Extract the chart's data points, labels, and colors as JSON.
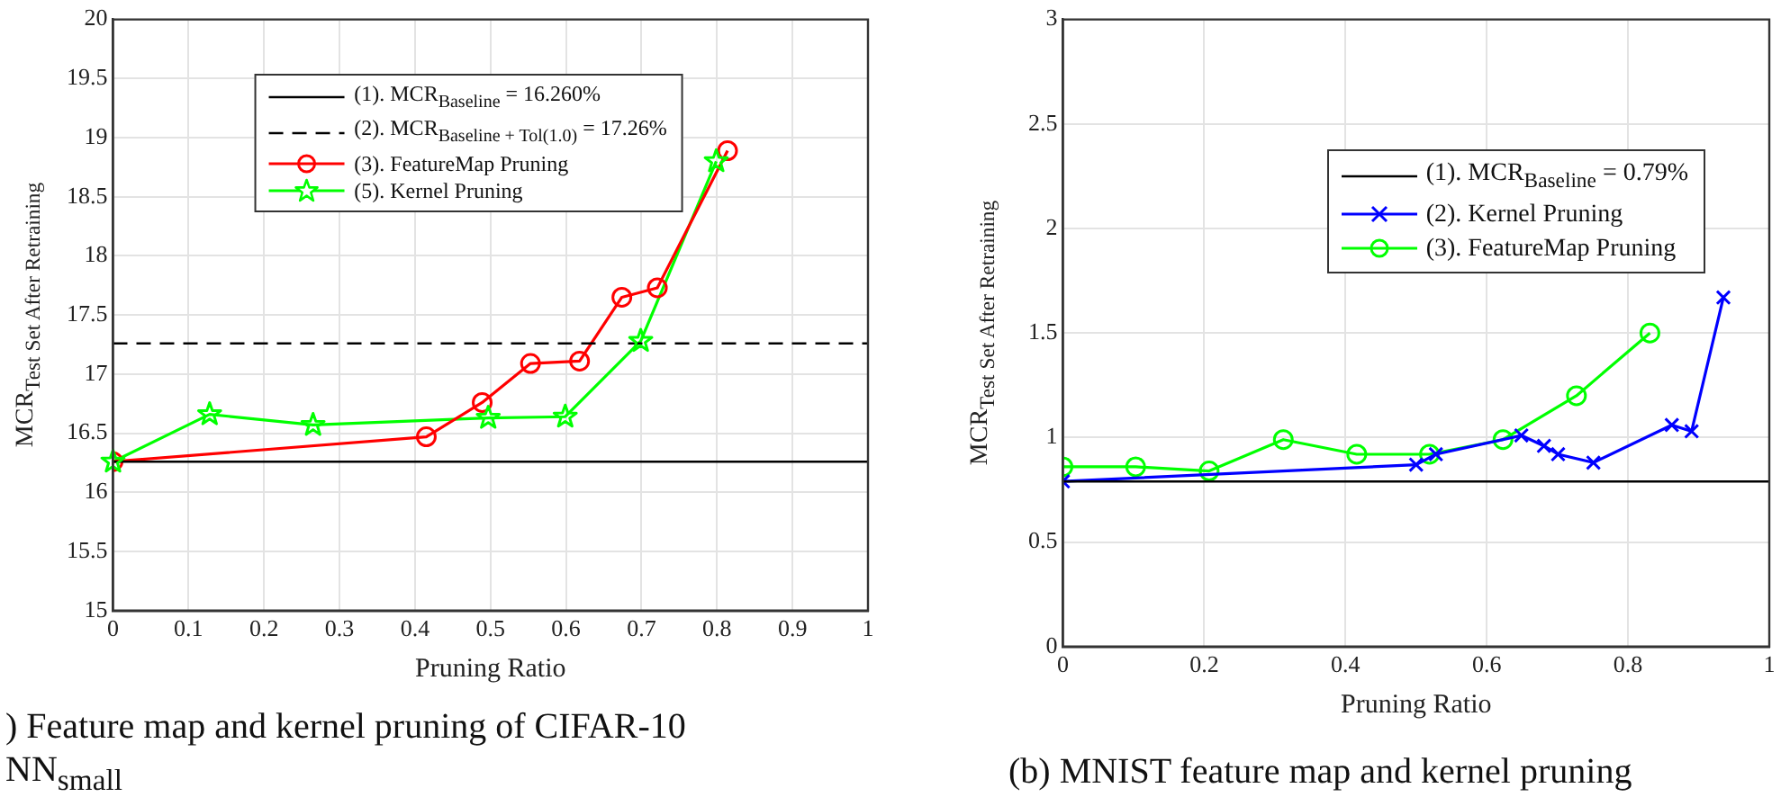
{
  "chart_data": [
    {
      "type": "line",
      "xlabel": "Pruning Ratio",
      "ylabel": "MCR$_{Test Set After Retraining}$",
      "xlim": [
        0,
        1
      ],
      "ylim": [
        15,
        20
      ],
      "xticks": [
        0,
        0.1,
        0.2,
        0.3,
        0.4,
        0.5,
        0.6,
        0.7,
        0.8,
        0.9,
        1
      ],
      "yticks": [
        15,
        15.5,
        16,
        16.5,
        17,
        17.5,
        18,
        18.5,
        19,
        19.5,
        20
      ],
      "grid": true,
      "legend": "top",
      "line_style": "solid",
      "ref_lines": [
        {
          "axis": "y",
          "value": 16.26,
          "label": "(1). MCR$_{Baseline}$ = 16.260%",
          "color": "#000000",
          "line_style": "solid"
        },
        {
          "axis": "y",
          "value": 17.26,
          "label": "(2). MCR$_{Baseline + Tol(1.0)}$ = 17.26%",
          "color": "#000000",
          "line_style": "dashed"
        }
      ],
      "series": [
        {
          "name": "(3). FeatureMap Pruning",
          "color": "#ff0000",
          "marker": "circle",
          "x": [
            0,
            0.415,
            0.489,
            0.553,
            0.618,
            0.674,
            0.721,
            0.814
          ],
          "values": [
            16.26,
            16.47,
            16.76,
            17.09,
            17.11,
            17.65,
            17.73,
            18.89
          ]
        },
        {
          "name": "(5). Kernel Pruning",
          "color": "#00ff00",
          "marker": "star",
          "x": [
            0,
            0.128,
            0.265,
            0.497,
            0.599,
            0.699,
            0.799
          ],
          "values": [
            16.26,
            16.66,
            16.57,
            16.63,
            16.64,
            17.28,
            18.8
          ]
        }
      ],
      "annotations": [
        ") Feature map and kernel pruning of CIFAR-10 NN$_{small}$"
      ]
    },
    {
      "type": "line",
      "xlabel": "Pruning Ratio",
      "ylabel": "MCR$_{Test Set After Retraining}$",
      "xlim": [
        0,
        1
      ],
      "ylim": [
        0,
        3
      ],
      "xticks": [
        0,
        0.2,
        0.4,
        0.6,
        0.8,
        1
      ],
      "yticks": [
        0,
        0.5,
        1,
        1.5,
        2,
        2.5,
        3
      ],
      "grid": true,
      "legend": "top right",
      "line_style": "solid",
      "ref_lines": [
        {
          "axis": "y",
          "value": 0.79,
          "label": "(1). MCR$_{Baseline}$ = 0.79%",
          "color": "#000000",
          "line_style": "solid"
        }
      ],
      "series": [
        {
          "name": "(2). Kernel Pruning",
          "color": "#0000ff",
          "marker": "cross",
          "x": [
            0,
            0.5,
            0.528,
            0.649,
            0.681,
            0.701,
            0.751,
            0.862,
            0.89,
            0.935
          ],
          "values": [
            0.79,
            0.87,
            0.92,
            1.01,
            0.96,
            0.92,
            0.88,
            1.06,
            1.03,
            1.67
          ]
        },
        {
          "name": "(3). FeatureMap Pruning",
          "color": "#00ff00",
          "marker": "circle",
          "x": [
            0,
            0.103,
            0.207,
            0.312,
            0.416,
            0.519,
            0.623,
            0.727,
            0.831
          ],
          "values": [
            0.86,
            0.86,
            0.84,
            0.99,
            0.92,
            0.92,
            0.99,
            1.2,
            1.5
          ]
        }
      ],
      "annotations": [
        "(b) MNIST feature map and kernel pruning"
      ]
    }
  ]
}
